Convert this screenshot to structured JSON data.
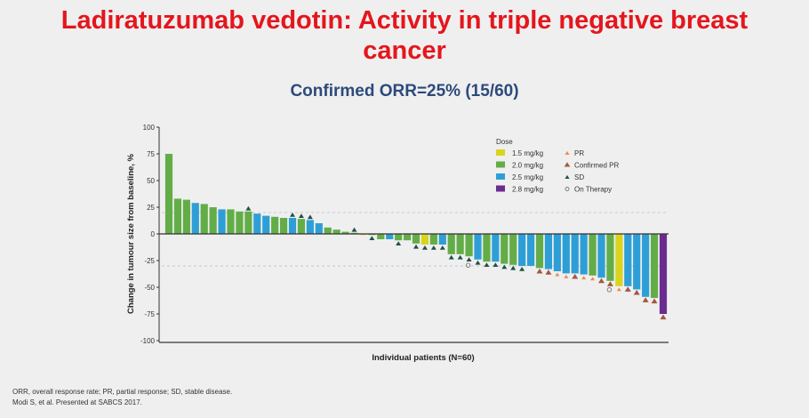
{
  "slide": {
    "title_line1": "Ladiratuzumab vedotin: Activity in triple negative breast",
    "title_line2": "cancer",
    "subtitle": "Confirmed ORR=25% (15/60)",
    "footnote1": "ORR, overall response rate; PR, partial response; SD, stable disease.",
    "footnote2": "Modi S, et al. Presented at SABCS 2017."
  },
  "chart_data": {
    "type": "bar",
    "title": "Confirmed ORR=25% (15/60)",
    "xlabel": "Individual patients (N=60)",
    "ylabel": "Change in tumour size from baseline, %",
    "ylim": [
      -100,
      100
    ],
    "yticks": [
      100,
      75,
      50,
      25,
      0,
      -25,
      -50,
      -75,
      -100
    ],
    "reference_lines": [
      20,
      -30
    ],
    "legend": {
      "title": "Dose",
      "placement": "top-right",
      "doses": [
        {
          "key": "1.5",
          "label": "1.5 mg/kg",
          "color": "#d9d41f"
        },
        {
          "key": "2.0",
          "label": "2.0 mg/kg",
          "color": "#63ad48"
        },
        {
          "key": "2.5",
          "label": "2.5 mg/kg",
          "color": "#2e9fd6"
        },
        {
          "key": "2.8",
          "label": "2.8 mg/kg",
          "color": "#6b2c8f"
        }
      ],
      "markers": [
        {
          "key": "PR",
          "label": "PR",
          "color": "#ec8a55"
        },
        {
          "key": "CPR",
          "label": "Confirmed PR",
          "color": "#a4573f"
        },
        {
          "key": "SD",
          "label": "SD",
          "color": "#1f5249"
        },
        {
          "key": "OT",
          "label": "On Therapy",
          "color": "#777777"
        }
      ]
    },
    "patients": [
      {
        "v": 75,
        "d": "2.0",
        "m": ""
      },
      {
        "v": 33,
        "d": "2.0",
        "m": ""
      },
      {
        "v": 32,
        "d": "2.0",
        "m": ""
      },
      {
        "v": 29,
        "d": "2.5",
        "m": ""
      },
      {
        "v": 28,
        "d": "2.0",
        "m": ""
      },
      {
        "v": 25,
        "d": "2.0",
        "m": ""
      },
      {
        "v": 23,
        "d": "2.5",
        "m": ""
      },
      {
        "v": 23,
        "d": "2.0",
        "m": ""
      },
      {
        "v": 21,
        "d": "2.0",
        "m": ""
      },
      {
        "v": 21,
        "d": "2.0",
        "m": "SD"
      },
      {
        "v": 19,
        "d": "2.5",
        "m": ""
      },
      {
        "v": 17,
        "d": "2.5",
        "m": ""
      },
      {
        "v": 16,
        "d": "2.0",
        "m": ""
      },
      {
        "v": 15,
        "d": "2.0",
        "m": ""
      },
      {
        "v": 15,
        "d": "2.5",
        "m": "SD"
      },
      {
        "v": 14,
        "d": "2.0",
        "m": "SD"
      },
      {
        "v": 13,
        "d": "2.5",
        "m": "SD"
      },
      {
        "v": 10,
        "d": "2.5",
        "m": ""
      },
      {
        "v": 6,
        "d": "2.0",
        "m": ""
      },
      {
        "v": 4,
        "d": "2.0",
        "m": ""
      },
      {
        "v": 2,
        "d": "2.0",
        "m": ""
      },
      {
        "v": 1,
        "d": "2.0",
        "m": "SD"
      },
      {
        "v": -1,
        "d": "1.5",
        "m": ""
      },
      {
        "v": -1,
        "d": "2.0",
        "m": "SD"
      },
      {
        "v": -5,
        "d": "2.0",
        "m": ""
      },
      {
        "v": -5,
        "d": "2.5",
        "m": ""
      },
      {
        "v": -6,
        "d": "2.0",
        "m": "SD"
      },
      {
        "v": -6,
        "d": "2.0",
        "m": ""
      },
      {
        "v": -9,
        "d": "2.0",
        "m": "SD"
      },
      {
        "v": -10,
        "d": "1.5",
        "m": "SD"
      },
      {
        "v": -10,
        "d": "2.0",
        "m": "SD"
      },
      {
        "v": -10,
        "d": "2.5",
        "m": "SD"
      },
      {
        "v": -19,
        "d": "2.0",
        "m": "SD"
      },
      {
        "v": -19,
        "d": "2.0",
        "m": "SD"
      },
      {
        "v": -21,
        "d": "2.0",
        "m": "SD",
        "ot": true
      },
      {
        "v": -24,
        "d": "2.5",
        "m": "SD"
      },
      {
        "v": -26,
        "d": "2.0",
        "m": "SD"
      },
      {
        "v": -26,
        "d": "2.5",
        "m": "SD"
      },
      {
        "v": -28,
        "d": "2.0",
        "m": "SD"
      },
      {
        "v": -29,
        "d": "2.0",
        "m": "SD"
      },
      {
        "v": -30,
        "d": "2.5",
        "m": "SD"
      },
      {
        "v": -30,
        "d": "2.5",
        "m": ""
      },
      {
        "v": -32,
        "d": "2.0",
        "m": "CPR"
      },
      {
        "v": -33,
        "d": "2.5",
        "m": "CPR"
      },
      {
        "v": -35,
        "d": "2.5",
        "m": "PR"
      },
      {
        "v": -37,
        "d": "2.5",
        "m": "PR"
      },
      {
        "v": -37,
        "d": "2.5",
        "m": "CPR"
      },
      {
        "v": -38,
        "d": "2.5",
        "m": "PR"
      },
      {
        "v": -39,
        "d": "2.0",
        "m": "PR"
      },
      {
        "v": -41,
        "d": "2.5",
        "m": "CPR"
      },
      {
        "v": -44,
        "d": "2.0",
        "m": "CPR",
        "ot": true
      },
      {
        "v": -49,
        "d": "1.5",
        "m": "PR"
      },
      {
        "v": -49,
        "d": "2.5",
        "m": "CPR"
      },
      {
        "v": -52,
        "d": "2.5",
        "m": "CPR"
      },
      {
        "v": -59,
        "d": "2.5",
        "m": "CPR"
      },
      {
        "v": -60,
        "d": "2.0",
        "m": "CPR"
      },
      {
        "v": -75,
        "d": "2.8",
        "m": "CPR"
      }
    ]
  }
}
